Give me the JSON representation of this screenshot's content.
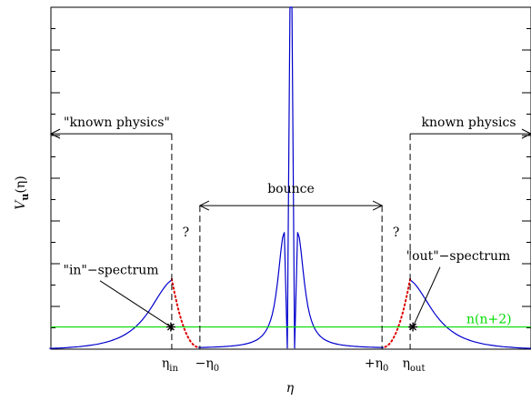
{
  "chart_data": {
    "type": "line",
    "title": "",
    "xlabel": "η",
    "ylabel_base": "V",
    "ylabel_sub": "u",
    "ylabel_tail": "(η)",
    "x_ticks": [
      {
        "key": "eta_in",
        "base": "η",
        "sub": "in",
        "x": -7.2
      },
      {
        "key": "minus_eta0",
        "base": "−η",
        "sub": "0",
        "x": -5.5
      },
      {
        "key": "plus_eta0",
        "base": "+η",
        "sub": "0",
        "x": 5.5
      },
      {
        "key": "eta_out",
        "base": "η",
        "sub": "out",
        "x": 7.2
      }
    ],
    "xlim": [
      -14.5,
      14.5
    ],
    "ylim": [
      0,
      10
    ],
    "grid": false,
    "potential": {
      "color": "#0000cc",
      "outer_left_peak": {
        "x": -7.2,
        "y": 2.0
      },
      "outer_right_peak": {
        "x": 7.2,
        "y": 2.0
      },
      "inner_peaks": [
        {
          "x": -0.4,
          "y": 3.4
        },
        {
          "x": 0.4,
          "y": 3.4
        }
      ],
      "central_spike": {
        "x": 0.0,
        "y": 10.0
      }
    },
    "unknown_region_color": "#dd0000",
    "reference_line": {
      "label": "n(n+2)",
      "y": 0.65,
      "color": "#00dd00"
    },
    "annotations": {
      "known_left": "\"known physics\"",
      "known_right": "known physics",
      "bounce": "bounce",
      "question_left": "?",
      "question_right": "?",
      "in_spectrum": "\"in\"−spectrum",
      "out_spectrum": "\"out\"−spectrum"
    }
  }
}
